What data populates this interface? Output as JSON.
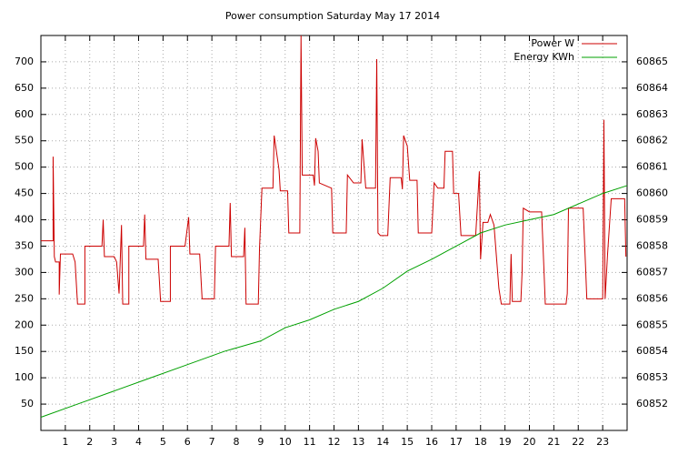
{
  "chart_data": {
    "type": "line",
    "title": "Power consumption Saturday May 17 2014",
    "xlim": [
      0,
      24
    ],
    "xticks": [
      1,
      2,
      3,
      4,
      5,
      6,
      7,
      8,
      9,
      10,
      11,
      12,
      13,
      14,
      15,
      16,
      17,
      18,
      19,
      20,
      21,
      22,
      23
    ],
    "ylim": [
      0,
      750
    ],
    "yticks": [
      50,
      100,
      150,
      200,
      250,
      300,
      350,
      400,
      450,
      500,
      550,
      600,
      650,
      700
    ],
    "y2lim": [
      60851,
      60866
    ],
    "y2ticks": [
      60852,
      60853,
      60854,
      60855,
      60856,
      60857,
      60858,
      60859,
      60860,
      60861,
      60862,
      60863,
      60864,
      60865
    ],
    "grid": true,
    "legend": "top-right",
    "series": [
      {
        "name": "Power W",
        "color": "#cc0000",
        "x": [
          0,
          0.5,
          0.5,
          0.55,
          0.6,
          0.75,
          0.75,
          0.8,
          1.3,
          1.4,
          1.5,
          1.8,
          1.8,
          2.5,
          2.55,
          2.6,
          3,
          3.1,
          3.2,
          3.3,
          3.35,
          3.6,
          3.6,
          4.2,
          4.25,
          4.3,
          4.8,
          4.9,
          5.3,
          5.3,
          5.9,
          6.05,
          6.1,
          6.5,
          6.6,
          7.1,
          7.15,
          7.7,
          7.75,
          7.8,
          8.3,
          8.35,
          8.4,
          8.9,
          8.95,
          9.05,
          9.5,
          9.55,
          9.75,
          9.8,
          10.1,
          10.15,
          10.6,
          10.65,
          10.7,
          11.15,
          11.2,
          11.25,
          11.35,
          11.4,
          11.9,
          11.95,
          12.5,
          12.55,
          12.8,
          13.1,
          13.15,
          13.3,
          13.7,
          13.75,
          13.8,
          13.9,
          14.2,
          14.3,
          14.75,
          14.8,
          14.85,
          15.0,
          15.1,
          15.4,
          15.45,
          16.0,
          16.1,
          16.25,
          16.5,
          16.55,
          16.85,
          16.9,
          17.1,
          17.2,
          17.8,
          17.9,
          17.95,
          18.0,
          18.1,
          18.3,
          18.4,
          18.55,
          18.75,
          18.85,
          19.2,
          19.25,
          19.3,
          19.65,
          19.7,
          19.75,
          20.0,
          20.5,
          20.6,
          20.65,
          21.5,
          21.55,
          21.6,
          22.2,
          22.3,
          22.35,
          23.0,
          23.05,
          23.1,
          23.2,
          23.35,
          23.9,
          23.95
        ],
        "values": [
          360,
          360,
          520,
          330,
          320,
          320,
          258,
          335,
          335,
          320,
          240,
          240,
          350,
          350,
          400,
          330,
          330,
          320,
          260,
          390,
          240,
          240,
          350,
          350,
          410,
          325,
          325,
          245,
          245,
          350,
          350,
          405,
          335,
          335,
          250,
          250,
          350,
          350,
          432,
          330,
          330,
          385,
          240,
          240,
          345,
          460,
          460,
          560,
          495,
          455,
          455,
          375,
          375,
          750,
          485,
          485,
          465,
          555,
          530,
          470,
          460,
          375,
          375,
          485,
          470,
          470,
          553,
          460,
          460,
          705,
          375,
          370,
          370,
          480,
          480,
          458,
          560,
          540,
          475,
          475,
          375,
          375,
          470,
          460,
          460,
          530,
          530,
          450,
          450,
          370,
          370,
          450,
          492,
          325,
          395,
          395,
          410,
          390,
          270,
          240,
          240,
          335,
          245,
          245,
          300,
          422,
          415,
          415,
          300,
          240,
          240,
          260,
          422,
          422,
          310,
          250,
          250,
          590,
          250,
          335,
          440,
          440,
          330
        ]
      },
      {
        "name": "Energy KWh",
        "color": "#00a000",
        "axis": "y2",
        "x": [
          0,
          1.5,
          3,
          4.5,
          6,
          7.5,
          9,
          10,
          11,
          12,
          13,
          14,
          15,
          16,
          17,
          18,
          19,
          20,
          21,
          22,
          23,
          24
        ],
        "values": [
          60851.5,
          60852.0,
          60852.5,
          60853.0,
          60853.5,
          60854.0,
          60854.4,
          60854.9,
          60855.2,
          60855.6,
          60855.9,
          60856.4,
          60857.05,
          60857.5,
          60858.0,
          60858.5,
          60858.8,
          60859.0,
          60859.2,
          60859.6,
          60860.0,
          60860.3
        ]
      }
    ]
  }
}
